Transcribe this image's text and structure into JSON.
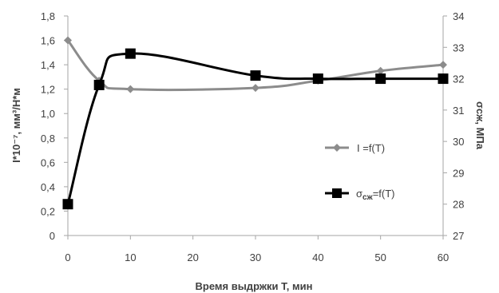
{
  "chart_data": {
    "type": "line",
    "xlabel": "Время выдржки Т, мин",
    "ylabel_left": "I*10⁻⁷, мм³/Н*м",
    "ylabel_right": "σсж, МПа",
    "x_ticks": [
      "0",
      "10",
      "20",
      "30",
      "40",
      "50",
      "60"
    ],
    "y_left_ticks": [
      "0",
      "0,2",
      "0,4",
      "0,6",
      "0,8",
      "1,0",
      "1,2",
      "1,4",
      "1,6",
      "1,8"
    ],
    "y_right_ticks": [
      "27",
      "28",
      "29",
      "30",
      "31",
      "32",
      "33",
      "34"
    ],
    "xlim": [
      0,
      60
    ],
    "ylim_left": [
      0,
      1.8
    ],
    "ylim_right": [
      27,
      34
    ],
    "grid": false,
    "legend_position": "right-middle",
    "series": [
      {
        "name": "I =f(T)",
        "axis": "left",
        "marker": "diamond",
        "color": "#8c8c8c",
        "x": [
          0,
          5,
          10,
          30,
          40,
          50,
          60
        ],
        "values": [
          1.6,
          1.27,
          1.2,
          1.21,
          1.27,
          1.35,
          1.4
        ]
      },
      {
        "name": "σсж=f(T)",
        "name_main": "σ",
        "name_sub": "сж",
        "name_rest": "=f(T)",
        "axis": "right",
        "marker": "square",
        "color": "#000000",
        "x": [
          0,
          5,
          10,
          30,
          40,
          50,
          60
        ],
        "values": [
          28.0,
          31.8,
          32.8,
          32.1,
          32.0,
          32.0,
          32.0
        ]
      }
    ]
  }
}
